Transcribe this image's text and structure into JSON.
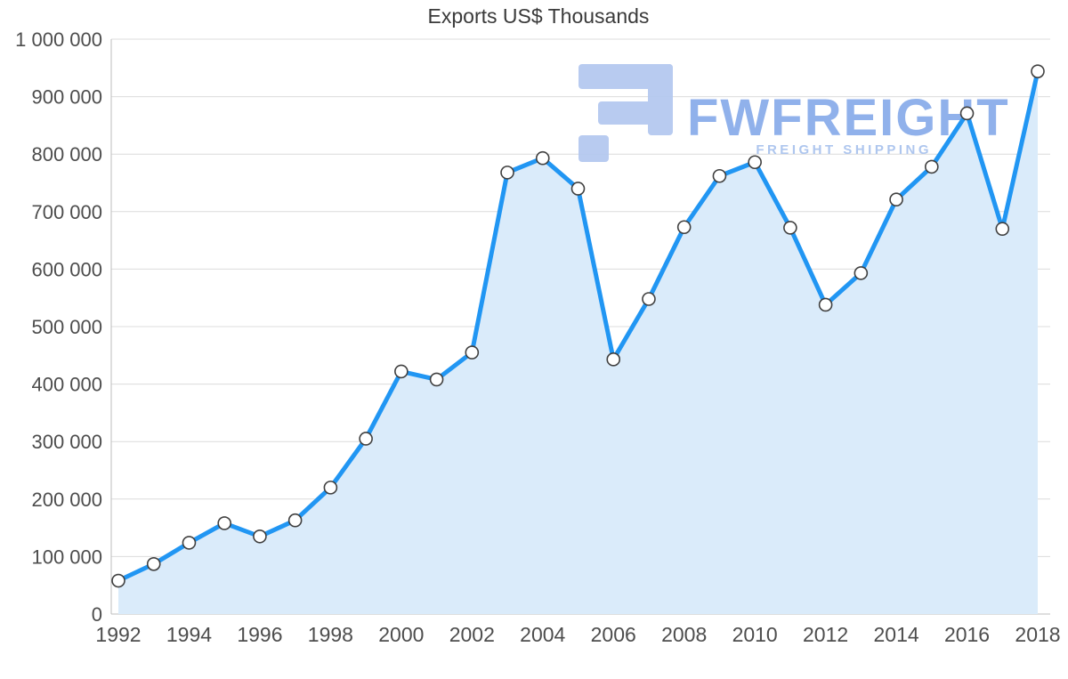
{
  "chart_data": {
    "type": "area",
    "title": "Exports US$ Thousands",
    "x": [
      1992,
      1993,
      1994,
      1995,
      1996,
      1997,
      1998,
      1999,
      2000,
      2001,
      2002,
      2003,
      2004,
      2005,
      2006,
      2007,
      2008,
      2009,
      2010,
      2011,
      2012,
      2013,
      2014,
      2015,
      2016,
      2017,
      2018
    ],
    "values": [
      58000,
      87000,
      124000,
      158000,
      135000,
      163000,
      220000,
      305000,
      422000,
      408000,
      455000,
      768000,
      793000,
      740000,
      443000,
      548000,
      673000,
      762000,
      786000,
      672000,
      538000,
      593000,
      721000,
      778000,
      871000,
      670000,
      944000
    ],
    "x_ticks": [
      1992,
      1994,
      1996,
      1998,
      2000,
      2002,
      2004,
      2006,
      2008,
      2010,
      2012,
      2014,
      2016,
      2018
    ],
    "y_ticks": [
      0,
      100000,
      200000,
      300000,
      400000,
      500000,
      600000,
      700000,
      800000,
      900000,
      1000000
    ],
    "ylim": [
      0,
      1000000
    ],
    "xlabel": "",
    "ylabel": "",
    "grid": "horizontal",
    "legend": "none",
    "marker": "circle",
    "colors": {
      "line": "#2196f3",
      "area": "#daebfa",
      "marker_fill": "#ffffff",
      "marker_stroke": "#404040"
    }
  },
  "watermark": {
    "brand": "FWFREIGHT",
    "tagline": "FREIGHT SHIPPING",
    "logo_color": "#b5c9f0"
  }
}
